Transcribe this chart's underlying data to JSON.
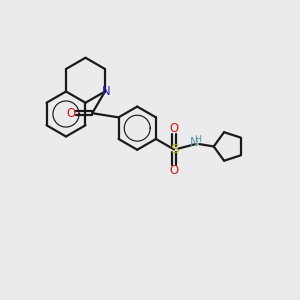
{
  "bg_color": "#ebebeb",
  "bond_color": "#1a1a1a",
  "n_color": "#2020dd",
  "o_color": "#dd1111",
  "s_color": "#aaaa00",
  "nh_color": "#5599aa",
  "lw": 1.6,
  "fs": 8.0,
  "xlim": [
    0,
    10
  ],
  "ylim": [
    0,
    10
  ]
}
